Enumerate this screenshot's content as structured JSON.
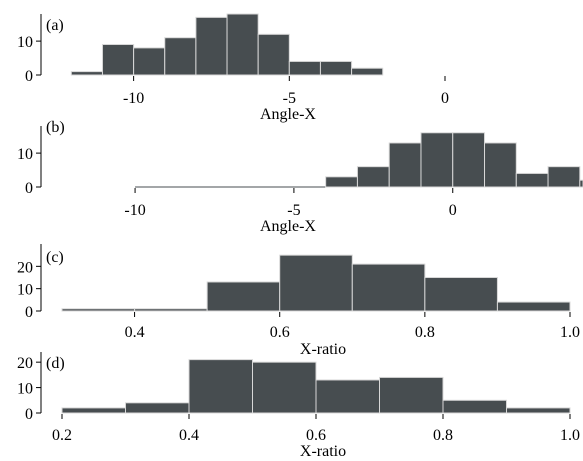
{
  "chart_data": [
    {
      "type": "bar",
      "panel_label": "(a)",
      "xlabel": "Angle-X",
      "ylabel": "",
      "xlim": [
        -12.3,
        0.0
      ],
      "ylim": [
        0,
        18
      ],
      "x_ticks": [
        -10,
        -5,
        0
      ],
      "x_tick_labels": [
        "-10",
        "-5",
        "0"
      ],
      "y_ticks": [
        0,
        10
      ],
      "y_tick_labels": [
        "0",
        "10"
      ],
      "bins": [
        {
          "start": -12,
          "end": -11,
          "count": 1
        },
        {
          "start": -11,
          "end": -10,
          "count": 9
        },
        {
          "start": -10,
          "end": -9,
          "count": 8
        },
        {
          "start": -9,
          "end": -8,
          "count": 11
        },
        {
          "start": -8,
          "end": -7,
          "count": 17
        },
        {
          "start": -7,
          "end": -6,
          "count": 18
        },
        {
          "start": -6,
          "end": -5,
          "count": 12
        },
        {
          "start": -5,
          "end": -4,
          "count": 4
        },
        {
          "start": -4,
          "end": -3,
          "count": 4
        },
        {
          "start": -3,
          "end": -2,
          "count": 2
        }
      ]
    },
    {
      "type": "bar",
      "panel_label": "(b)",
      "xlabel": "Angle-X",
      "ylabel": "",
      "xlim": [
        -12.3,
        4.1
      ],
      "ylim": [
        0,
        18
      ],
      "x_ticks": [
        -10,
        -5,
        0
      ],
      "x_tick_labels": [
        "-10",
        "-5",
        "0"
      ],
      "y_ticks": [
        0,
        10
      ],
      "y_tick_labels": [
        "0",
        "10"
      ],
      "bins": [
        {
          "start": -10,
          "end": -4,
          "count": 0
        },
        {
          "start": -4,
          "end": -3,
          "count": 3
        },
        {
          "start": -3,
          "end": -2,
          "count": 6
        },
        {
          "start": -2,
          "end": -1,
          "count": 13
        },
        {
          "start": -1,
          "end": 0,
          "count": 16
        },
        {
          "start": 0,
          "end": 1,
          "count": 16
        },
        {
          "start": 1,
          "end": 2,
          "count": 13
        },
        {
          "start": 2,
          "end": 3,
          "count": 4
        },
        {
          "start": 3,
          "end": 4,
          "count": 6
        },
        {
          "start": 4,
          "end": 4.1,
          "count": 2
        }
      ]
    },
    {
      "type": "bar",
      "panel_label": "(c)",
      "xlabel": "X-ratio",
      "ylabel": "",
      "xlim": [
        0.3,
        1.0
      ],
      "ylim": [
        0,
        30
      ],
      "x_ticks": [
        0.4,
        0.6,
        0.8,
        1.0
      ],
      "x_tick_labels": [
        "0.4",
        "0.6",
        "0.8",
        "1.0"
      ],
      "y_ticks": [
        0,
        10,
        20
      ],
      "y_tick_labels": [
        "0",
        "10",
        "20"
      ],
      "bins": [
        {
          "start": 0.3,
          "end": 0.4,
          "count": 1
        },
        {
          "start": 0.4,
          "end": 0.5,
          "count": 1
        },
        {
          "start": 0.5,
          "end": 0.6,
          "count": 13
        },
        {
          "start": 0.6,
          "end": 0.7,
          "count": 25
        },
        {
          "start": 0.7,
          "end": 0.8,
          "count": 21
        },
        {
          "start": 0.8,
          "end": 0.9,
          "count": 15
        },
        {
          "start": 0.9,
          "end": 1.0,
          "count": 4
        }
      ]
    },
    {
      "type": "bar",
      "panel_label": "(d)",
      "xlabel": "X-ratio",
      "ylabel": "",
      "xlim": [
        0.2,
        1.0
      ],
      "ylim": [
        0,
        24
      ],
      "x_ticks": [
        0.2,
        0.4,
        0.6,
        0.8,
        1.0
      ],
      "x_tick_labels": [
        "0.2",
        "0.4",
        "0.6",
        "0.8",
        "1.0"
      ],
      "y_ticks": [
        0,
        10,
        20
      ],
      "y_tick_labels": [
        "0",
        "10",
        "20"
      ],
      "bins": [
        {
          "start": 0.2,
          "end": 0.3,
          "count": 2
        },
        {
          "start": 0.3,
          "end": 0.4,
          "count": 4
        },
        {
          "start": 0.4,
          "end": 0.5,
          "count": 21
        },
        {
          "start": 0.5,
          "end": 0.6,
          "count": 20
        },
        {
          "start": 0.6,
          "end": 0.7,
          "count": 13
        },
        {
          "start": 0.7,
          "end": 0.8,
          "count": 14
        },
        {
          "start": 0.8,
          "end": 0.9,
          "count": 5
        },
        {
          "start": 0.9,
          "end": 1.0,
          "count": 2
        }
      ]
    }
  ]
}
